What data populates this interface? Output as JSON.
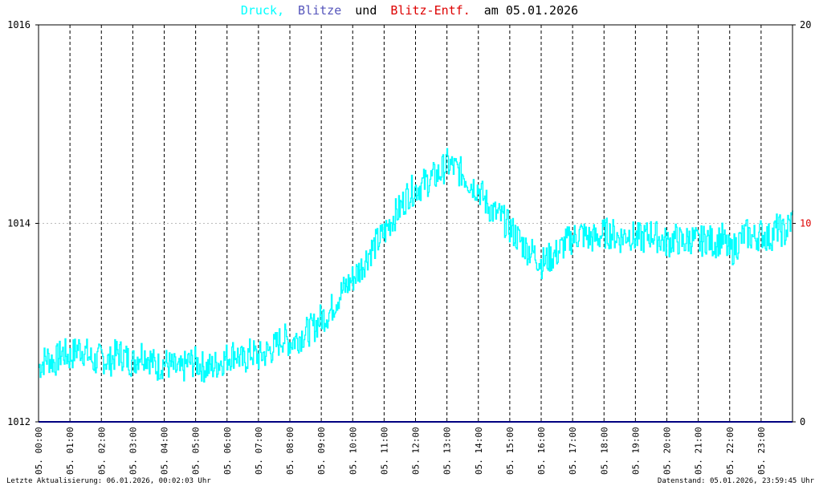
{
  "title": {
    "part1": "Druck,",
    "part2": "Blitze",
    "part3": "und",
    "part4": "Blitz-Entf.",
    "part5": "am 05.01.2026"
  },
  "colors": {
    "pressure": "#00ffff",
    "lightning": "#5555bb",
    "distance": "#dd0000",
    "grid": "#000000",
    "baseline": "#000080"
  },
  "footer": {
    "left": "Letzte Aktualisierung: 06.01.2026, 00:02:03 Uhr",
    "right": "Datenstand: 05.01.2026, 23:59:45 Uhr"
  },
  "chart_data": {
    "type": "line",
    "xlabel": "",
    "ylabel": "",
    "ylim": [
      1012,
      1016
    ],
    "y2lim": [
      0,
      20
    ],
    "yticks": [
      "1016",
      "1014",
      "1012"
    ],
    "y2ticks": [
      "20",
      "10",
      "0"
    ],
    "xticks": [
      "05. 00:00",
      "05. 01:00",
      "05. 02:00",
      "05. 03:00",
      "05. 04:00",
      "05. 05:00",
      "05. 06:00",
      "05. 07:00",
      "05. 08:00",
      "05. 09:00",
      "05. 10:00",
      "05. 11:00",
      "05. 12:00",
      "05. 13:00",
      "05. 14:00",
      "05. 15:00",
      "05. 16:00",
      "05. 17:00",
      "05. 18:00",
      "05. 19:00",
      "05. 20:00",
      "05. 21:00",
      "05. 22:00",
      "05. 23:00"
    ],
    "grid": true,
    "series": [
      {
        "name": "Druck",
        "x": [
          0,
          0.25,
          0.5,
          0.75,
          1,
          1.25,
          1.5,
          1.75,
          2,
          2.25,
          2.5,
          2.75,
          3,
          3.25,
          3.5,
          3.75,
          4,
          4.25,
          4.5,
          4.75,
          5,
          5.25,
          5.5,
          5.75,
          6,
          6.25,
          6.5,
          6.75,
          7,
          7.25,
          7.5,
          7.75,
          8,
          8.25,
          8.5,
          8.75,
          9,
          9.25,
          9.5,
          9.75,
          10,
          10.25,
          10.5,
          10.75,
          11,
          11.25,
          11.5,
          11.75,
          12,
          12.25,
          12.5,
          12.75,
          13,
          13.25,
          13.5,
          13.75,
          14,
          14.25,
          14.5,
          14.75,
          15,
          15.25,
          15.5,
          15.75,
          16,
          16.25,
          16.5,
          16.75,
          17,
          17.25,
          17.5,
          17.75,
          18,
          18.25,
          18.5,
          18.75,
          19,
          19.25,
          19.5,
          19.75,
          20,
          20.25,
          20.5,
          20.75,
          21,
          21.25,
          21.5,
          21.75,
          22,
          22.25,
          22.5,
          22.75,
          23,
          23.25,
          23.5,
          23.75,
          24
        ],
        "y": [
          1012.55,
          1012.65,
          1012.6,
          1012.7,
          1012.65,
          1012.75,
          1012.7,
          1012.6,
          1012.65,
          1012.6,
          1012.7,
          1012.65,
          1012.6,
          1012.7,
          1012.65,
          1012.55,
          1012.6,
          1012.55,
          1012.5,
          1012.6,
          1012.6,
          1012.55,
          1012.55,
          1012.6,
          1012.65,
          1012.7,
          1012.6,
          1012.7,
          1012.65,
          1012.7,
          1012.75,
          1012.85,
          1012.8,
          1012.85,
          1012.9,
          1012.95,
          1013.05,
          1013.1,
          1013.25,
          1013.35,
          1013.45,
          1013.55,
          1013.7,
          1013.8,
          1013.9,
          1014.05,
          1014.15,
          1014.3,
          1014.35,
          1014.4,
          1014.45,
          1014.5,
          1014.6,
          1014.55,
          1014.5,
          1014.4,
          1014.35,
          1014.2,
          1014.1,
          1014.05,
          1013.95,
          1013.85,
          1013.75,
          1013.7,
          1013.6,
          1013.65,
          1013.7,
          1013.8,
          1013.85,
          1013.9,
          1013.85,
          1013.85,
          1013.9,
          1013.9,
          1013.85,
          1013.9,
          1013.85,
          1013.85,
          1013.9,
          1013.85,
          1013.8,
          1013.85,
          1013.8,
          1013.85,
          1013.8,
          1013.85,
          1013.8,
          1013.85,
          1013.7,
          1013.8,
          1013.9,
          1013.85,
          1013.9,
          1013.85,
          1013.95,
          1013.9,
          1014.05
        ]
      },
      {
        "name": "Blitze",
        "x": [
          0,
          24
        ],
        "y": [
          0,
          0
        ]
      }
    ]
  }
}
